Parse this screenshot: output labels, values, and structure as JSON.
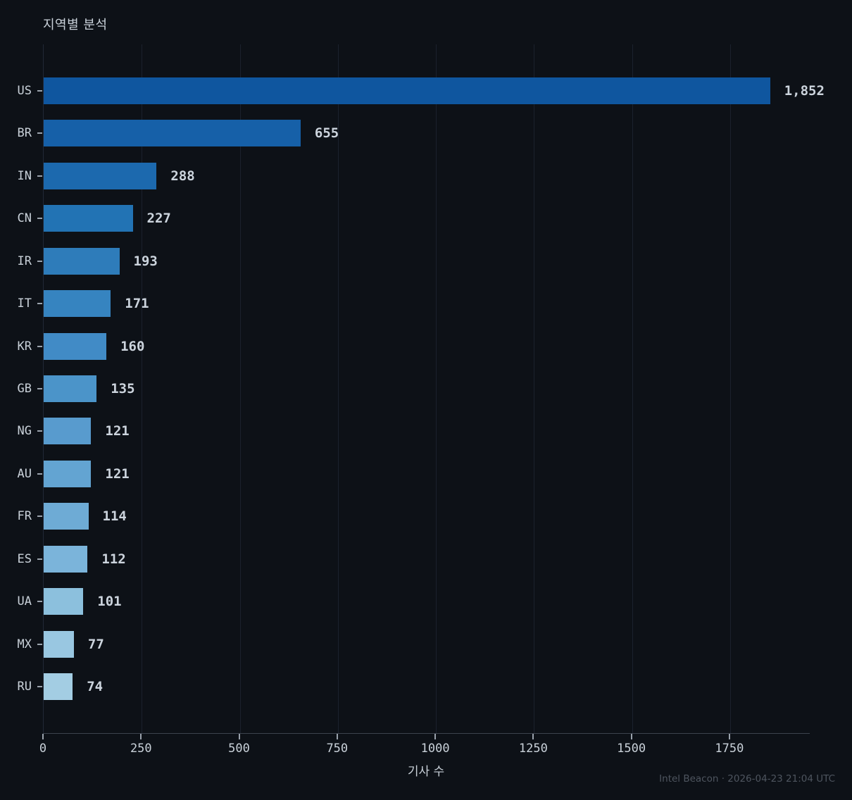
{
  "chart_data": {
    "type": "bar",
    "orientation": "horizontal",
    "title": "지역별 분석",
    "xlabel": "기사 수",
    "categories": [
      "US",
      "BR",
      "IN",
      "CN",
      "IR",
      "IT",
      "KR",
      "GB",
      "NG",
      "AU",
      "FR",
      "ES",
      "UA",
      "MX",
      "RU"
    ],
    "values": [
      1852,
      655,
      288,
      227,
      193,
      171,
      160,
      135,
      121,
      121,
      114,
      112,
      101,
      77,
      74
    ],
    "value_labels": [
      "1,852",
      "655",
      "288",
      "227",
      "193",
      "171",
      "160",
      "135",
      "121",
      "121",
      "114",
      "112",
      "101",
      "77",
      "74"
    ],
    "bar_colors": [
      "#0f569f",
      "#1660a8",
      "#1c69ae",
      "#2273b4",
      "#2e7cba",
      "#3684c0",
      "#418bc6",
      "#4b94c9",
      "#589bce",
      "#63a4d2",
      "#6eabd5",
      "#7bb4da",
      "#8cc0dd",
      "#99c7e1",
      "#a3cde3"
    ],
    "x_ticks": [
      0,
      250,
      500,
      750,
      1000,
      1250,
      1500,
      1750
    ],
    "x_tick_labels": [
      "0",
      "250",
      "500",
      "750",
      "1000",
      "1250",
      "1500",
      "1750"
    ],
    "xlim": [
      0,
      1953
    ],
    "grid": "vertical-gridlines-on",
    "legend": "none"
  },
  "footer": {
    "text": "Intel Beacon · 2026-04-23 21:04 UTC"
  },
  "colors": {
    "background": "#0d1117",
    "gridline": "#1b212d",
    "axis_line": "#3d434e",
    "tick_mark": "#9aa2ac",
    "text": "#c9d1d9",
    "value_text": "#ccd4dd",
    "footer_text": "#4e555f"
  }
}
